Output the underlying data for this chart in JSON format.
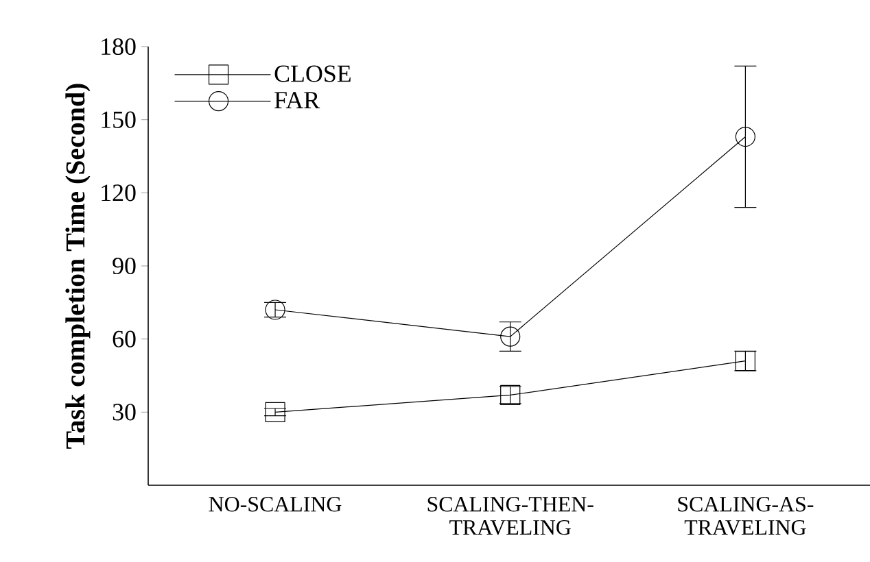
{
  "chart_data": {
    "type": "line",
    "ylabel": "Task completion Time (Second)",
    "categories": [
      "NO-SCALING",
      "SCALING-THEN-TRAVELING",
      "SCALING-AS-TRAVELING"
    ],
    "series": [
      {
        "name": "CLOSE",
        "color": "#000000",
        "marker": "square",
        "values": [
          30,
          37,
          51
        ],
        "errors": [
          1.5,
          3.5,
          4
        ]
      },
      {
        "name": "FAR",
        "color": "#000000",
        "marker": "circle",
        "values": [
          72,
          61,
          143
        ],
        "errors": [
          3,
          6,
          29
        ]
      }
    ],
    "ylim": [
      0,
      180
    ],
    "yticks": [
      30,
      60,
      90,
      120,
      150,
      180
    ],
    "grid": false,
    "legend": "top left"
  }
}
